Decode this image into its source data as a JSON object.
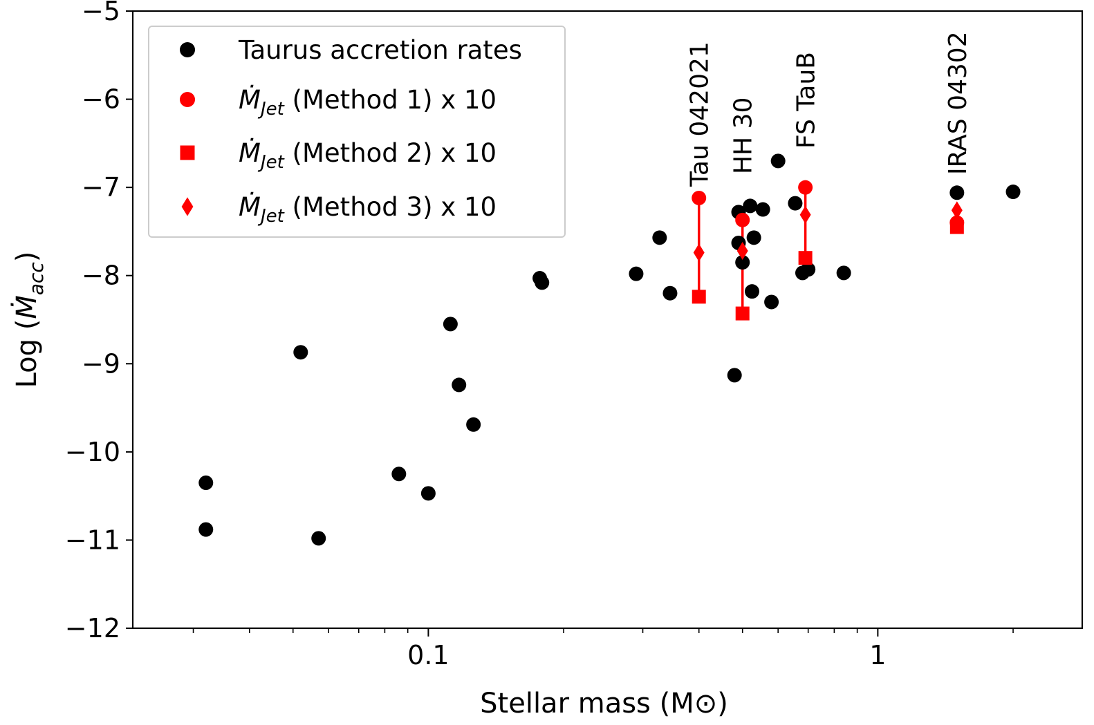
{
  "chart_data": {
    "type": "scatter",
    "x_scale": "log",
    "xlim": [
      0.022,
      2.85
    ],
    "ylim": [
      -12,
      -5
    ],
    "xlabel": "Stellar mass (M⊙)",
    "ylabel_prefix": "Log (",
    "ylabel_main": "Ṁ",
    "ylabel_sub": "acc",
    "ylabel_suffix": ")",
    "xticks": [
      {
        "value": 0.1,
        "label": "0.1"
      },
      {
        "value": 1,
        "label": "1"
      }
    ],
    "yticks": [
      {
        "value": -12,
        "label": "−12"
      },
      {
        "value": -11,
        "label": "−11"
      },
      {
        "value": -10,
        "label": "−10"
      },
      {
        "value": -9,
        "label": "−9"
      },
      {
        "value": -8,
        "label": "−8"
      },
      {
        "value": -7,
        "label": "−7"
      },
      {
        "value": -6,
        "label": "−6"
      },
      {
        "value": -5,
        "label": "−5"
      }
    ],
    "grid": false,
    "legend_position": "top-left",
    "colors": {
      "taurus": "#000000",
      "jet": "#ff0000"
    },
    "legend": [
      {
        "marker": "circle",
        "color": "#000000",
        "label": "Taurus accretion rates"
      },
      {
        "marker": "circle",
        "color": "#ff0000",
        "symbol": "Ṁ",
        "sub": "Jet",
        "label": " (Method 1)  x 10"
      },
      {
        "marker": "square",
        "color": "#ff0000",
        "symbol": "Ṁ",
        "sub": "Jet",
        "label": " (Method 2)  x 10"
      },
      {
        "marker": "diamond",
        "color": "#ff0000",
        "symbol": "Ṁ",
        "sub": "Jet",
        "label": " (Method 3)  x 10"
      }
    ],
    "series": [
      {
        "name": "Taurus accretion rates",
        "marker": "circle",
        "color": "#000000",
        "points": [
          [
            0.032,
            -10.35
          ],
          [
            0.032,
            -10.88
          ],
          [
            0.052,
            -8.87
          ],
          [
            0.057,
            -10.98
          ],
          [
            0.086,
            -10.25
          ],
          [
            0.1,
            -10.47
          ],
          [
            0.112,
            -8.55
          ],
          [
            0.117,
            -9.24
          ],
          [
            0.126,
            -9.69
          ],
          [
            0.177,
            -8.03
          ],
          [
            0.179,
            -8.08
          ],
          [
            0.29,
            -7.98
          ],
          [
            0.327,
            -7.57
          ],
          [
            0.345,
            -8.2
          ],
          [
            0.48,
            -9.13
          ],
          [
            0.49,
            -7.28
          ],
          [
            0.49,
            -7.63
          ],
          [
            0.5,
            -7.85
          ],
          [
            0.52,
            -7.21
          ],
          [
            0.525,
            -8.18
          ],
          [
            0.53,
            -7.57
          ],
          [
            0.555,
            -7.25
          ],
          [
            0.58,
            -8.3
          ],
          [
            0.6,
            -6.7
          ],
          [
            0.655,
            -7.18
          ],
          [
            0.68,
            -7.97
          ],
          [
            0.7,
            -7.93
          ],
          [
            0.84,
            -7.97
          ],
          [
            1.5,
            -7.06
          ],
          [
            2.0,
            -7.05
          ]
        ]
      },
      {
        "name": "Method 1",
        "marker": "circle",
        "color": "#ff0000",
        "points": [
          [
            0.4,
            -7.12
          ],
          [
            0.5,
            -7.37
          ],
          [
            0.69,
            -7.0
          ],
          [
            1.5,
            -7.4
          ]
        ]
      },
      {
        "name": "Method 2",
        "marker": "square",
        "color": "#ff0000",
        "points": [
          [
            0.4,
            -8.24
          ],
          [
            0.5,
            -8.43
          ],
          [
            0.69,
            -7.8
          ],
          [
            1.5,
            -7.45
          ]
        ]
      },
      {
        "name": "Method 3",
        "marker": "diamond",
        "color": "#ff0000",
        "points": [
          [
            0.4,
            -7.74
          ],
          [
            0.5,
            -7.72
          ],
          [
            0.69,
            -7.31
          ],
          [
            1.5,
            -7.26
          ]
        ]
      }
    ],
    "ranges": [
      {
        "x": 0.4,
        "y_low": -8.24,
        "y_high": -7.12
      },
      {
        "x": 0.5,
        "y_low": -8.43,
        "y_high": -7.37
      },
      {
        "x": 0.69,
        "y_low": -7.8,
        "y_high": -7.0
      }
    ],
    "annotations": [
      {
        "text": "Tau 042021",
        "x": 0.4
      },
      {
        "text": "HH 30",
        "x": 0.5
      },
      {
        "text": "FS TauB",
        "x": 0.69
      },
      {
        "text": "IRAS 04302",
        "x": 1.5
      }
    ]
  }
}
